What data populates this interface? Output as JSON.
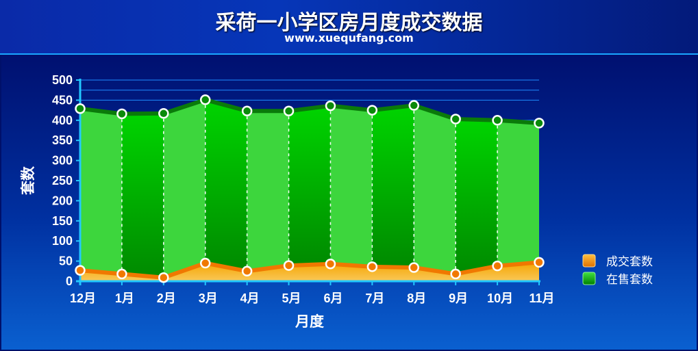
{
  "header": {
    "title": "采荷一小学区房月度成交数据",
    "subtitle": "www.xuequfang.com"
  },
  "chart_data": {
    "type": "area",
    "categories": [
      "12月",
      "1月",
      "2月",
      "3月",
      "4月",
      "5月",
      "6月",
      "7月",
      "8月",
      "9月",
      "10月",
      "11月"
    ],
    "series": [
      {
        "name": "成交套数",
        "color": "#ff8c00",
        "values": [
          27,
          18,
          9,
          45,
          25,
          39,
          43,
          36,
          34,
          18,
          38,
          47
        ]
      },
      {
        "name": "在售套数",
        "color": "#00aa00",
        "values": [
          429,
          416,
          417,
          451,
          423,
          423,
          436,
          425,
          437,
          403,
          400,
          393
        ]
      }
    ],
    "xlabel": "月度",
    "ylabel": "套数",
    "ylim": [
      0,
      500
    ],
    "yticks": [
      "0",
      "50",
      "100",
      "150",
      "200",
      "250",
      "300",
      "350",
      "400",
      "450",
      "500"
    ],
    "grid": true,
    "legend_position": "right"
  }
}
